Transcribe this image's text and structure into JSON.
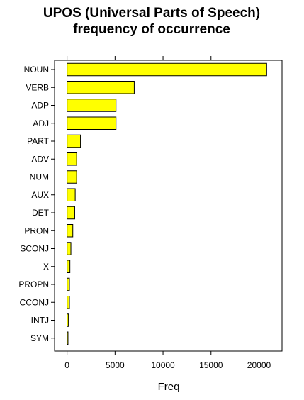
{
  "chart_data": {
    "type": "bar",
    "orientation": "horizontal",
    "title_lines": [
      "UPOS (Universal Parts of Speech)",
      "frequency of occurrence"
    ],
    "xlabel": "Freq",
    "ylabel": "",
    "categories": [
      "NOUN",
      "VERB",
      "ADP",
      "ADJ",
      "PART",
      "ADV",
      "NUM",
      "AUX",
      "DET",
      "PRON",
      "SCONJ",
      "X",
      "PROPN",
      "CCONJ",
      "INTJ",
      "SYM"
    ],
    "values": [
      20800,
      7000,
      5100,
      5100,
      1400,
      1000,
      1000,
      850,
      800,
      600,
      400,
      300,
      250,
      250,
      150,
      100
    ],
    "xlim": [
      -1300,
      22400
    ],
    "xticks": [
      0,
      5000,
      10000,
      15000,
      20000
    ],
    "bar_color": "#ffff00",
    "bar_edge_color": "#000000",
    "grid": false
  }
}
